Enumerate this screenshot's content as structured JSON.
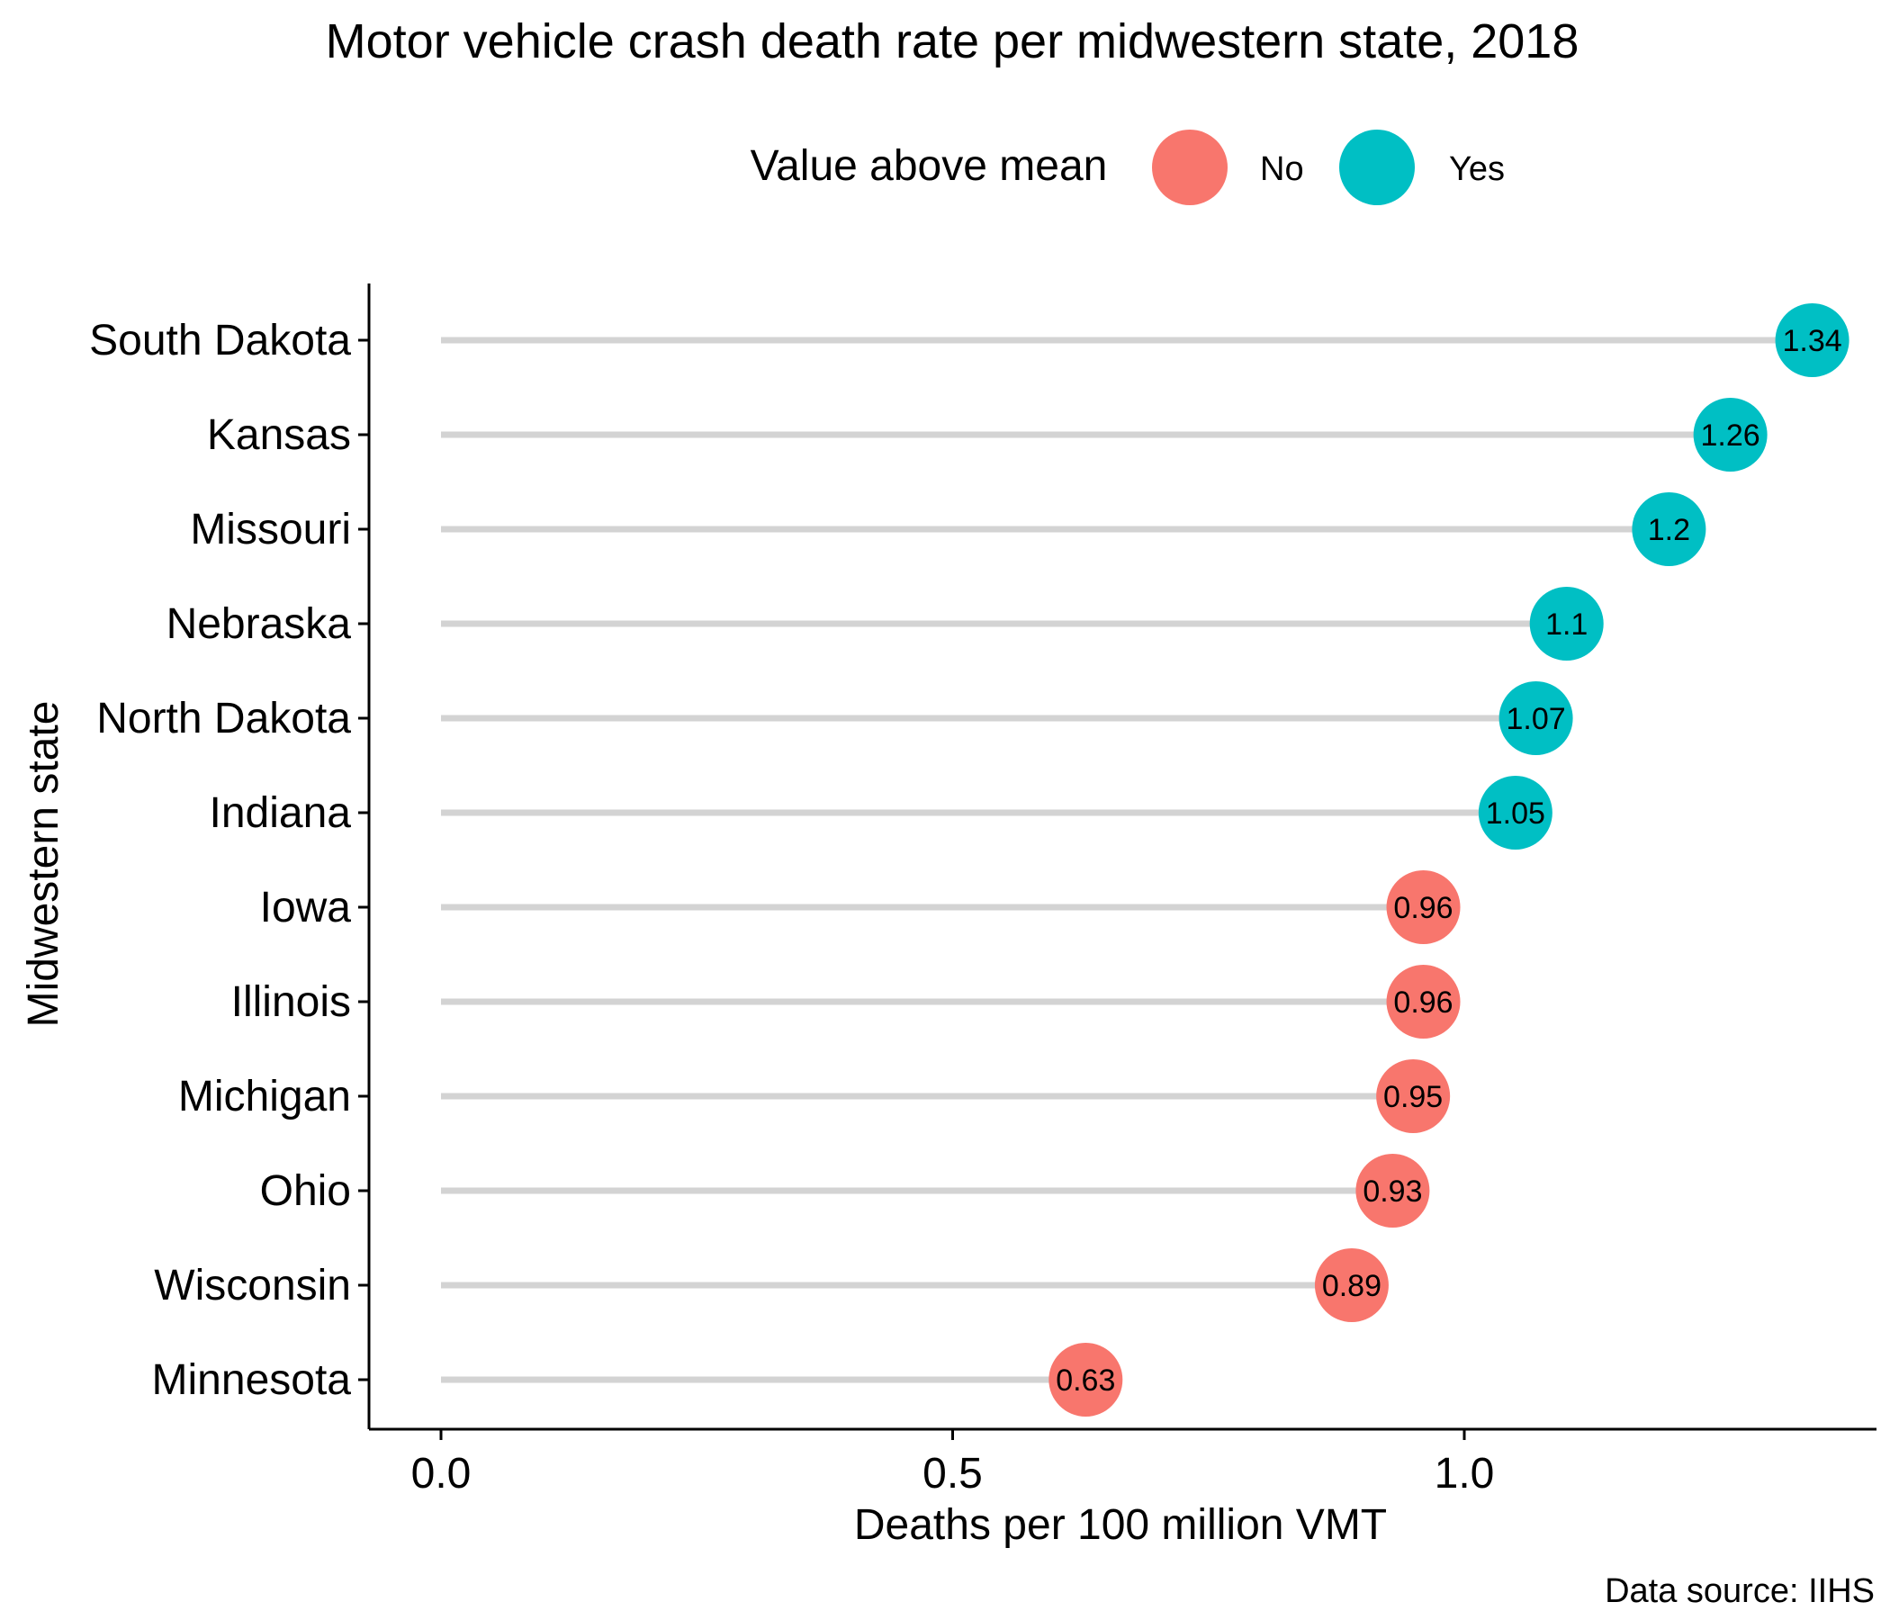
{
  "chart_data": {
    "type": "lollipop",
    "title": "Motor vehicle crash death rate per midwestern state, 2018",
    "xlabel": "Deaths per 100 million VMT",
    "ylabel": "Midwestern state",
    "caption": "Data source: IIHS",
    "xlim": [
      -0.035,
      1.4
    ],
    "x_ticks": [
      {
        "value": 0,
        "label": "0.0"
      },
      {
        "value": 0.5,
        "label": "0.5"
      },
      {
        "value": 1,
        "label": "1.0"
      }
    ],
    "grid": false,
    "legend": {
      "title": "Value above mean",
      "position": "top",
      "entries": [
        {
          "label": "No",
          "color": "#F8766D"
        },
        {
          "label": "Yes",
          "color": "#00BFC4"
        }
      ]
    },
    "stem_color": "#D3D3D3",
    "point_label_color": "#FFFFFF",
    "points": [
      {
        "state": "South Dakota",
        "value": 1.34,
        "label": "1.34",
        "above_mean": "Yes"
      },
      {
        "state": "Kansas",
        "value": 1.26,
        "label": "1.26",
        "above_mean": "Yes"
      },
      {
        "state": "Missouri",
        "value": 1.2,
        "label": "1.2",
        "above_mean": "Yes"
      },
      {
        "state": "Nebraska",
        "value": 1.1,
        "label": "1.1",
        "above_mean": "Yes"
      },
      {
        "state": "North Dakota",
        "value": 1.07,
        "label": "1.07",
        "above_mean": "Yes"
      },
      {
        "state": "Indiana",
        "value": 1.05,
        "label": "1.05",
        "above_mean": "Yes"
      },
      {
        "state": "Iowa",
        "value": 0.96,
        "label": "0.96",
        "above_mean": "No"
      },
      {
        "state": "Illinois",
        "value": 0.96,
        "label": "0.96",
        "above_mean": "No"
      },
      {
        "state": "Michigan",
        "value": 0.95,
        "label": "0.95",
        "above_mean": "No"
      },
      {
        "state": "Ohio",
        "value": 0.93,
        "label": "0.93",
        "above_mean": "No"
      },
      {
        "state": "Wisconsin",
        "value": 0.89,
        "label": "0.89",
        "above_mean": "No"
      },
      {
        "state": "Minnesota",
        "value": 0.63,
        "label": "0.63",
        "above_mean": "No"
      }
    ]
  }
}
